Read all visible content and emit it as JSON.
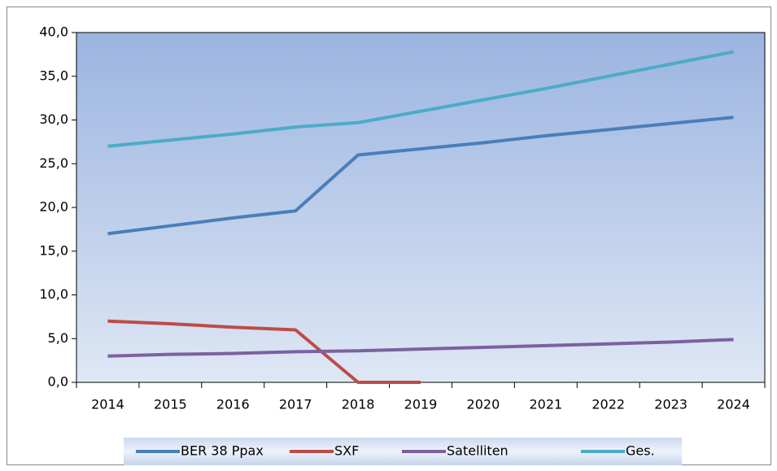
{
  "chart_data": {
    "type": "line",
    "categories": [
      "2014",
      "2015",
      "2016",
      "2017",
      "2018",
      "2019",
      "2020",
      "2021",
      "2022",
      "2023",
      "2024"
    ],
    "series": [
      {
        "name": "BER 38 Ppax",
        "color": "#4a7ebb",
        "values": [
          17.0,
          17.9,
          18.8,
          19.6,
          26.0,
          26.7,
          27.4,
          28.2,
          28.9,
          29.6,
          30.3
        ]
      },
      {
        "name": "SXF",
        "color": "#be4b48",
        "values": [
          7.0,
          6.7,
          6.3,
          6.0,
          0,
          0,
          null,
          null,
          null,
          null,
          null
        ]
      },
      {
        "name": "Satelliten",
        "color": "#7d60a0",
        "values": [
          3.0,
          3.2,
          3.3,
          3.5,
          3.6,
          3.8,
          4.0,
          4.2,
          4.4,
          4.6,
          4.9
        ]
      },
      {
        "name": "Ges.",
        "color": "#4bacc6",
        "values": [
          27.0,
          27.7,
          28.4,
          29.2,
          29.7,
          31.0,
          32.3,
          33.6,
          35.0,
          36.4,
          37.8
        ]
      }
    ],
    "ylim": [
      0,
      40
    ],
    "yticks": [
      {
        "value": 0,
        "label": "0,0"
      },
      {
        "value": 5,
        "label": "5,0"
      },
      {
        "value": 10,
        "label": "10,0"
      },
      {
        "value": 15,
        "label": "15,0"
      },
      {
        "value": 20,
        "label": "20,0"
      },
      {
        "value": 25,
        "label": "25,0"
      },
      {
        "value": 30,
        "label": "30,0"
      },
      {
        "value": 35,
        "label": "35,0"
      },
      {
        "value": 40,
        "label": "40,0"
      }
    ],
    "grid": false,
    "legend": "bottom"
  }
}
